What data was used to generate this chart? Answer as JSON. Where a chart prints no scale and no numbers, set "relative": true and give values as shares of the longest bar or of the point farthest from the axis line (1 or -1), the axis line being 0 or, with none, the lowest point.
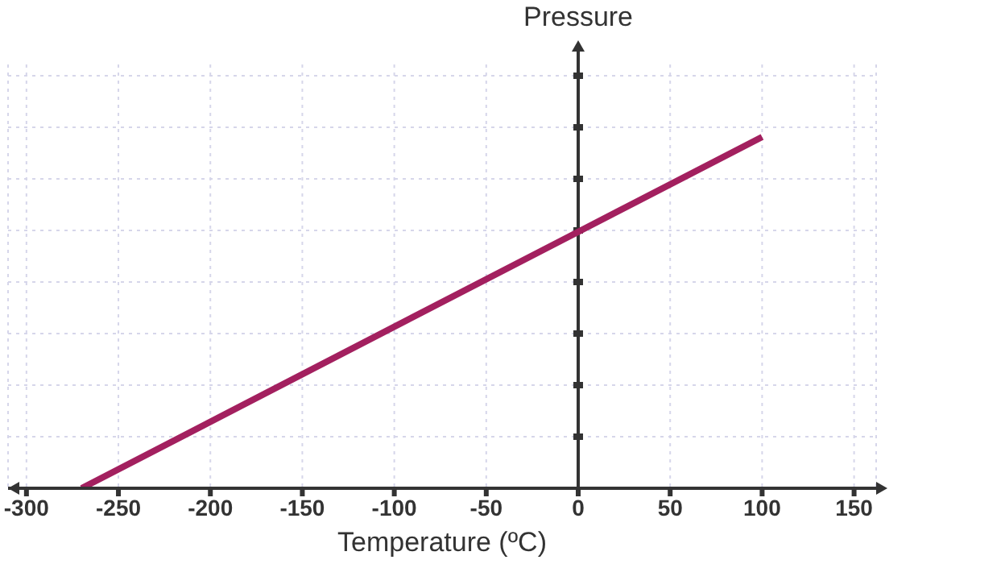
{
  "chart_data": {
    "type": "line",
    "xlabel": "Temperature (ºC)",
    "ylabel": "Pressure",
    "relative": true,
    "x": [
      -270,
      0,
      100
    ],
    "series": [
      {
        "color": "#a3205f",
        "values": [
          0,
          0.73,
          1
        ]
      }
    ],
    "xlim": [
      -310,
      162
    ],
    "xticks": [
      -300,
      -250,
      -200,
      -150,
      -100,
      -50,
      0,
      50,
      100,
      150
    ],
    "grid": true
  }
}
